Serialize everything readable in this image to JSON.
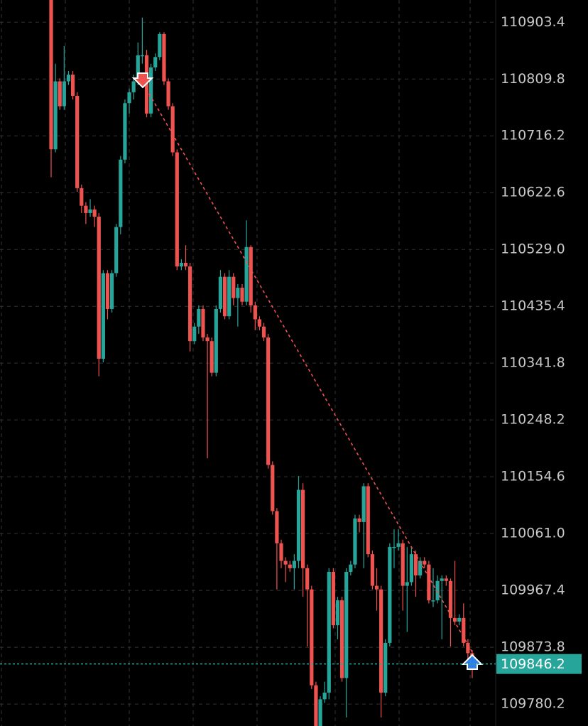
{
  "chart_data": {
    "type": "candlestick",
    "up_color": "#26a69a",
    "down_color": "#ef5350",
    "ylim": [
      109744,
      110940
    ],
    "yticks": [
      110903.4,
      110809.8,
      110716.2,
      110622.6,
      {
        "value": 110529.0,
        "label": "110529.0"
      },
      110435.4,
      110341.8,
      110248.2,
      110154.6,
      {
        "value": 110061.0,
        "label": "110061.0"
      },
      109967.4,
      109873.8,
      109780.2
    ],
    "grid": true,
    "last_price": 109846.2,
    "open": [
      110940,
      110694,
      110806,
      110765,
      110806,
      110817,
      110782,
      110630,
      110601,
      110589,
      110595,
      110583,
      110349,
      110490,
      110431,
      110490,
      110566,
      110677,
      110770,
      110788,
      110806,
      110849,
      110849,
      110753,
      110829,
      110846,
      110884,
      110806,
      110765,
      110689,
      110501,
      110507,
      110501,
      110378,
      110402,
      110431,
      110384,
      110378,
      110326,
      110431,
      110484,
      110419,
      110484,
      110449,
      110466,
      110443,
      110533,
      110437,
      110414,
      110402,
      110384,
      110174,
      110098,
      110045,
      110016,
      110010,
      110004,
      110016,
      110133,
      110004,
      109969,
      109811,
      109744,
      109788,
      109799,
      109998,
      109910,
      109951,
      109823,
      109998,
      110010,
      110086,
      110080,
      110139,
      110027,
      109975,
      109969,
      109799,
      109881,
      110039,
      110039,
      110045,
      109975,
      109981,
      110027,
      109992,
      110016,
      110010,
      109951,
      109951,
      109983,
      109987,
      109983,
      109922,
      109916,
      109922,
      109881,
      109864
    ],
    "high": [
      110940,
      110835,
      110811,
      110864,
      110823,
      110823,
      110788,
      110636,
      110607,
      110612,
      110601,
      110589,
      110495,
      110495,
      110495,
      110571,
      110683,
      110776,
      110794,
      110817,
      110870,
      110911,
      110858,
      110835,
      110852,
      110887,
      110887,
      110811,
      110770,
      110694,
      110513,
      110536,
      110507,
      110408,
      110437,
      110437,
      110390,
      110384,
      110437,
      110495,
      110490,
      110495,
      110490,
      110472,
      110472,
      110577,
      110536,
      110443,
      110419,
      110408,
      110390,
      110180,
      110103,
      110051,
      110022,
      110016,
      110027,
      110156,
      110144,
      110010,
      109975,
      109817,
      109793,
      109817,
      110004,
      110004,
      109957,
      109957,
      110004,
      110016,
      110092,
      110092,
      110144,
      110144,
      110033,
      110004,
      109975,
      109887,
      110045,
      110068,
      110068,
      110051,
      110039,
      110039,
      110033,
      110022,
      110022,
      110016,
      110004,
      109992,
      109992,
      109992,
      109987,
      110016,
      109928,
      109946,
      109887,
      109869
    ],
    "low": [
      110648,
      110689,
      110759,
      110759,
      110800,
      110776,
      110624,
      110589,
      110571,
      110583,
      110566,
      110320,
      110343,
      110414,
      110425,
      110484,
      110554,
      110671,
      110753,
      110776,
      110800,
      110835,
      110747,
      110747,
      110823,
      110841,
      110800,
      110759,
      110683,
      110495,
      110495,
      110495,
      110361,
      110373,
      110390,
      110378,
      110185,
      110320,
      110320,
      110425,
      110414,
      110414,
      110437,
      110402,
      110437,
      110437,
      110425,
      110396,
      110396,
      110378,
      110168,
      110092,
      109969,
      110004,
      109981,
      109998,
      109969,
      110004,
      109957,
      109875,
      109805,
      109744,
      109744,
      109782,
      109788,
      109905,
      109887,
      109817,
      109758,
      109992,
      110004,
      110063,
      110004,
      110022,
      109969,
      109934,
      109758,
      109793,
      109875,
      110004,
      110033,
      109934,
      109899,
      109975,
      109957,
      109987,
      110004,
      109946,
      109940,
      109946,
      109887,
      109975,
      109875,
      109910,
      109910,
      109875,
      109852,
      109823
    ],
    "close": [
      110694,
      110806,
      110765,
      110806,
      110817,
      110782,
      110630,
      110601,
      110589,
      110595,
      110583,
      110349,
      110490,
      110431,
      110490,
      110566,
      110677,
      110770,
      110788,
      110806,
      110849,
      110849,
      110753,
      110829,
      110846,
      110884,
      110806,
      110765,
      110689,
      110501,
      110507,
      110501,
      110378,
      110402,
      110431,
      110384,
      110378,
      110326,
      110431,
      110484,
      110419,
      110484,
      110449,
      110466,
      110443,
      110533,
      110437,
      110414,
      110402,
      110384,
      110174,
      110098,
      110045,
      110016,
      110010,
      110004,
      110016,
      110133,
      110004,
      109969,
      109811,
      109744,
      109788,
      109799,
      109998,
      109910,
      109951,
      109823,
      109998,
      110010,
      110086,
      110080,
      110139,
      110027,
      109975,
      109969,
      109799,
      109881,
      110039,
      110039,
      110045,
      109975,
      109981,
      110027,
      109992,
      110016,
      110010,
      109951,
      109951,
      109983,
      109987,
      109983,
      109922,
      109916,
      109922,
      109881,
      109864,
      109846.2
    ]
  }
}
